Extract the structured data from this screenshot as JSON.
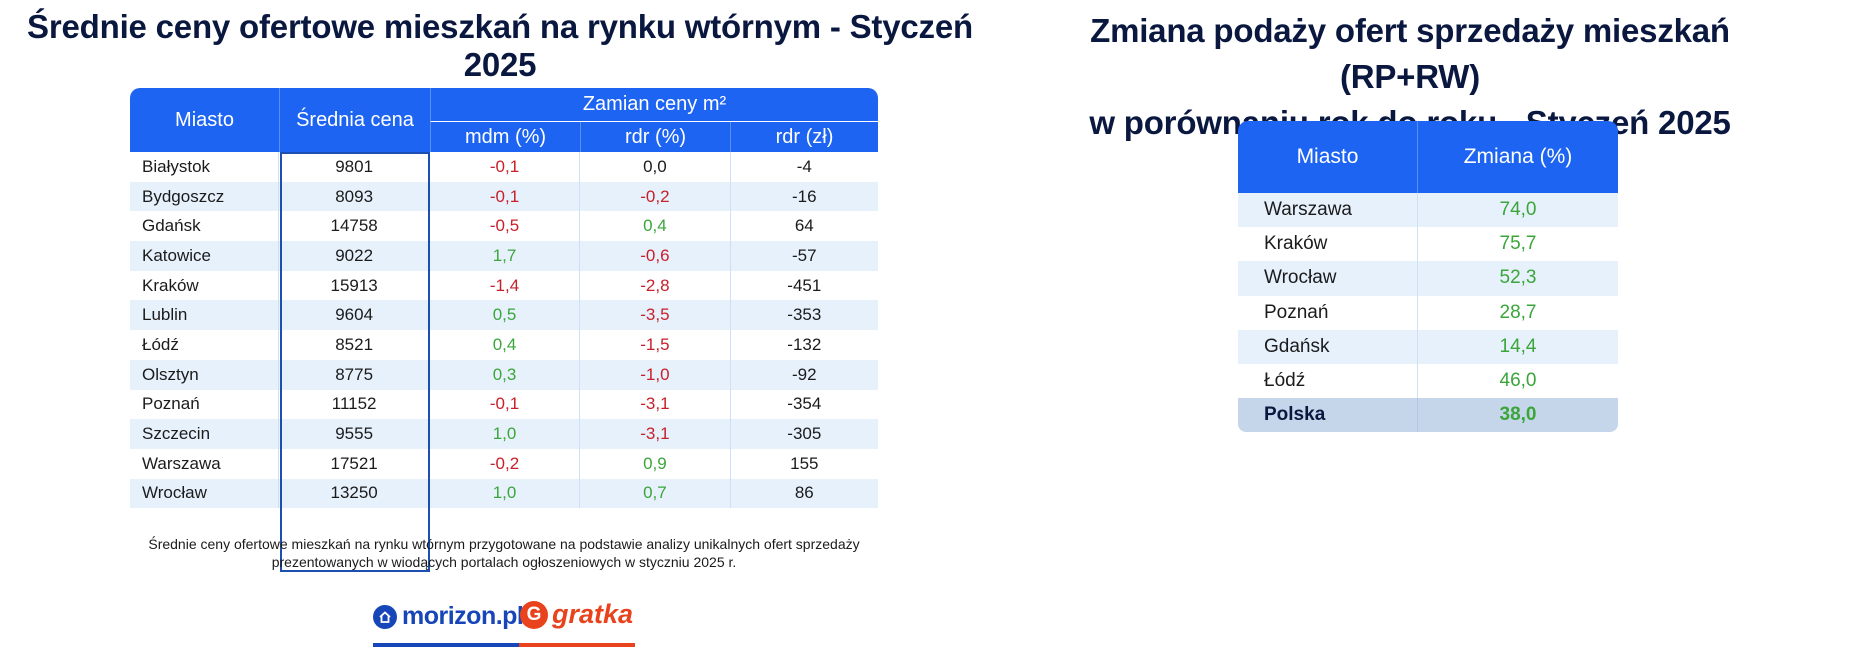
{
  "left": {
    "title": "Średnie ceny ofertowe mieszkań na rynku wtórnym - Styczeń 2025",
    "headers": {
      "city": "Miasto",
      "price": "Średnia cena",
      "change_group": "Zamian ceny m²",
      "mdm": "mdm (%)",
      "rdr_pct": "rdr (%)",
      "rdr_zl": "rdr (zł)"
    },
    "rows": [
      {
        "city": "Białystok",
        "price": "9801",
        "mdm": "-0,1",
        "rdr_pct": "0,0",
        "rdr_zl": "-4"
      },
      {
        "city": "Bydgoszcz",
        "price": "8093",
        "mdm": "-0,1",
        "rdr_pct": "-0,2",
        "rdr_zl": "-16"
      },
      {
        "city": "Gdańsk",
        "price": "14758",
        "mdm": "-0,5",
        "rdr_pct": "0,4",
        "rdr_zl": "64"
      },
      {
        "city": "Katowice",
        "price": "9022",
        "mdm": "1,7",
        "rdr_pct": "-0,6",
        "rdr_zl": "-57"
      },
      {
        "city": "Kraków",
        "price": "15913",
        "mdm": "-1,4",
        "rdr_pct": "-2,8",
        "rdr_zl": "-451"
      },
      {
        "city": "Lublin",
        "price": "9604",
        "mdm": "0,5",
        "rdr_pct": "-3,5",
        "rdr_zl": "-353"
      },
      {
        "city": "Łódź",
        "price": "8521",
        "mdm": "0,4",
        "rdr_pct": "-1,5",
        "rdr_zl": "-132"
      },
      {
        "city": "Olsztyn",
        "price": "8775",
        "mdm": "0,3",
        "rdr_pct": "-1,0",
        "rdr_zl": "-92"
      },
      {
        "city": "Poznań",
        "price": "11152",
        "mdm": "-0,1",
        "rdr_pct": "-3,1",
        "rdr_zl": "-354"
      },
      {
        "city": "Szczecin",
        "price": "9555",
        "mdm": "1,0",
        "rdr_pct": "-3,1",
        "rdr_zl": "-305"
      },
      {
        "city": "Warszawa",
        "price": "17521",
        "mdm": "-0,2",
        "rdr_pct": "0,9",
        "rdr_zl": "155"
      },
      {
        "city": "Wrocław",
        "price": "13250",
        "mdm": "1,0",
        "rdr_pct": "0,7",
        "rdr_zl": "86"
      }
    ],
    "footnote_line1": "Średnie ceny ofertowe mieszkań na rynku wtórnym przygotowane na podstawie analizy unikalnych ofert sprzedaży",
    "footnote_line2": "prezentowanych w wiodących portalach ogłoszeniowych w styczniu 2025 r."
  },
  "logos": {
    "morizon": "morizon.pl",
    "gratka": "gratka",
    "gratka_mark": "G"
  },
  "right": {
    "title_line1": "Zmiana podaży ofert sprzedaży mieszkań (RP+RW)",
    "title_line2": "w porównaniu rok do roku - Styczeń 2025",
    "headers": {
      "city": "Miasto",
      "change": "Zmiana (%)"
    },
    "rows": [
      {
        "city": "Warszawa",
        "change": "74,0"
      },
      {
        "city": "Kraków",
        "change": "75,7"
      },
      {
        "city": "Wrocław",
        "change": "52,3"
      },
      {
        "city": "Poznań",
        "change": "28,7"
      },
      {
        "city": "Gdańsk",
        "change": "14,4"
      },
      {
        "city": "Łódź",
        "change": "46,0"
      }
    ],
    "total": {
      "city": "Polska",
      "change": "38,0"
    }
  },
  "colors": {
    "header_blue": "#1d64f2",
    "stripe": "#e7f1fc",
    "negative": "#c8202a",
    "positive": "#3aa63a",
    "title_navy": "#0a1840",
    "total_row": "#c6d6ea"
  }
}
